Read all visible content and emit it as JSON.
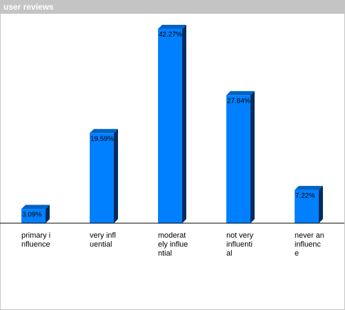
{
  "header": {
    "title": "user reviews"
  },
  "chart_data": {
    "type": "bar",
    "title": "user reviews",
    "categories": [
      "primary influence",
      "very influential",
      "moderately influential",
      "not very influential",
      "never an influence"
    ],
    "values": [
      3.09,
      19.59,
      42.27,
      27.84,
      7.22
    ],
    "value_labels": [
      "3.09%",
      "19.59%",
      "42.27%",
      "27.84%",
      "7.22%"
    ],
    "ylim": [
      0,
      45
    ],
    "grid": false,
    "legend": "none",
    "colors": {
      "bar_front": "#0080ff",
      "bar_side": "#002c5e",
      "bar_top": "#0063c6",
      "axis": "#000000",
      "title_bar": "#c4c4c4"
    }
  }
}
